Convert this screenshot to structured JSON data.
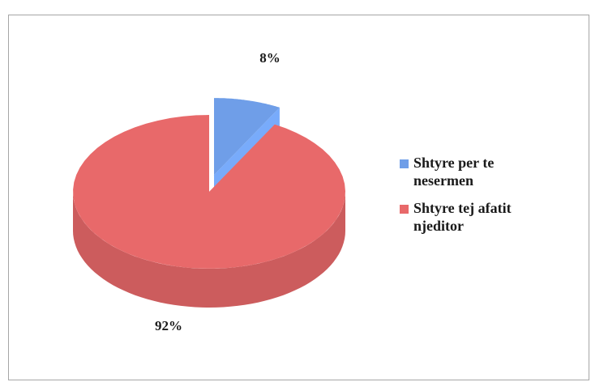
{
  "chart_data": {
    "type": "pie",
    "categories": [
      "Shtyre per te nesermen",
      "Shtyre tej afatit njeditor"
    ],
    "values": [
      8,
      92
    ],
    "value_labels": [
      "8%",
      "92%"
    ],
    "colors": [
      "#6f9ee8",
      "#e8696a"
    ],
    "explode": [
      true,
      false
    ]
  }
}
